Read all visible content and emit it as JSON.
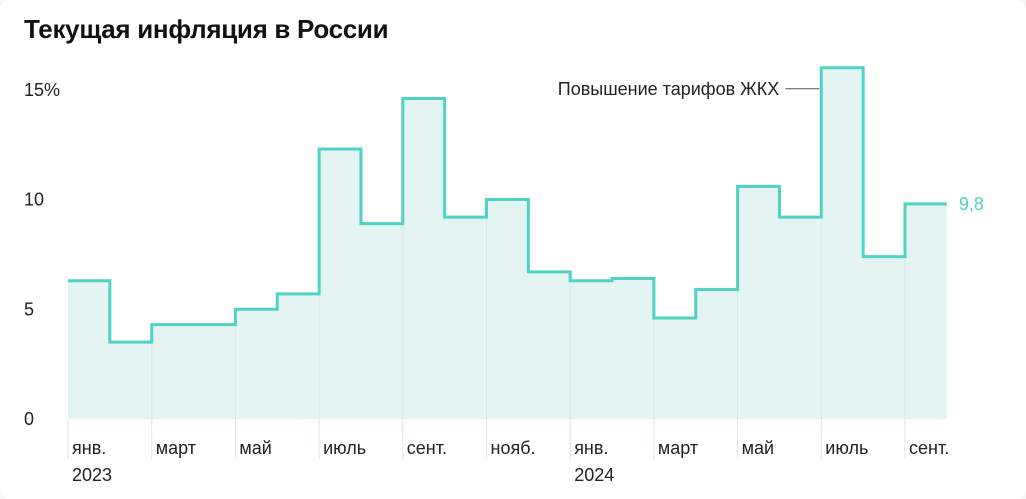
{
  "title": "Текущая инфляция в России",
  "chart_data": {
    "type": "area",
    "step": true,
    "title": "Текущая инфляция в России",
    "xlabel": "",
    "ylabel": "",
    "ylim": [
      0,
      15.9
    ],
    "y_ticks": [
      {
        "value": 0,
        "label": "0"
      },
      {
        "value": 5,
        "label": "5"
      },
      {
        "value": 10,
        "label": "10"
      },
      {
        "value": 15,
        "label": "15%"
      }
    ],
    "x_tick_labels": [
      {
        "index": 0,
        "label": "янв.",
        "year": "2023"
      },
      {
        "index": 2,
        "label": "март",
        "year": ""
      },
      {
        "index": 4,
        "label": "май",
        "year": ""
      },
      {
        "index": 6,
        "label": "июль",
        "year": ""
      },
      {
        "index": 8,
        "label": "сент.",
        "year": ""
      },
      {
        "index": 10,
        "label": "нояб.",
        "year": ""
      },
      {
        "index": 12,
        "label": "янв.",
        "year": "2024"
      },
      {
        "index": 14,
        "label": "март",
        "year": ""
      },
      {
        "index": 16,
        "label": "май",
        "year": ""
      },
      {
        "index": 18,
        "label": "июль",
        "year": ""
      },
      {
        "index": 20,
        "label": "сент.",
        "year": ""
      }
    ],
    "values": [
      6.3,
      3.5,
      4.3,
      4.3,
      5.0,
      5.7,
      12.3,
      8.9,
      14.6,
      9.2,
      10.0,
      6.7,
      6.3,
      6.4,
      4.6,
      5.9,
      10.6,
      9.2,
      16.0,
      7.4,
      9.8
    ],
    "annotations": [
      {
        "index": 18,
        "text": "Повышение тарифов ЖКХ"
      }
    ],
    "last_value_label": "9,8",
    "colors": {
      "line": "#4fd3c4",
      "fill": "#e3f4f2",
      "gridline": "#d6e9e6",
      "last_label": "#4fd3c4"
    },
    "grid": false
  }
}
